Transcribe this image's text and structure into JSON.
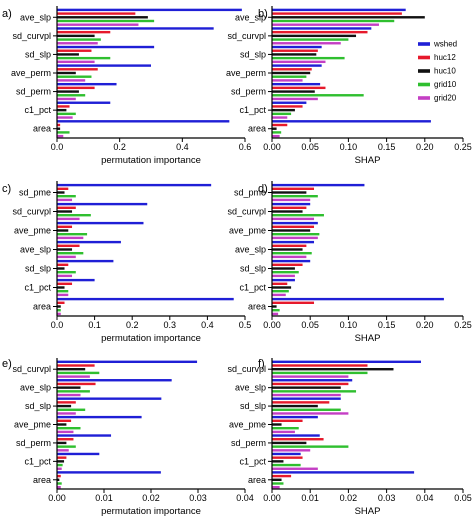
{
  "legend": {
    "series": [
      "wshed",
      "huc12",
      "huc10",
      "grid10",
      "grid20"
    ],
    "colors": [
      "#1f1fd6",
      "#e6192b",
      "#111111",
      "#2fbf2f",
      "#c43fc4"
    ],
    "placement": "inside right, panel b"
  },
  "chart_data": [
    {
      "panel": "a)",
      "type": "bar",
      "orientation": "horizontal",
      "xlabel": "permutation importance",
      "xlim": [
        0,
        0.6
      ],
      "ticks": [
        "0.0",
        "0.2",
        "0.4",
        "0.6"
      ],
      "tick_values": [
        0,
        0.2,
        0.4,
        0.6
      ],
      "categories": [
        "ave_slp",
        "sd_curvpl",
        "sd_slp",
        "ave_perm",
        "sd_perm",
        "c1_pct",
        "area"
      ],
      "series": [
        {
          "name": "wshed",
          "values": [
            0.59,
            0.5,
            0.31,
            0.3,
            0.19,
            0.17,
            0.55
          ]
        },
        {
          "name": "huc12",
          "values": [
            0.25,
            0.17,
            0.11,
            0.13,
            0.12,
            0.04,
            0.01
          ]
        },
        {
          "name": "huc10",
          "values": [
            0.29,
            0.12,
            0.07,
            0.06,
            0.07,
            0.03,
            0.01
          ]
        },
        {
          "name": "grid10",
          "values": [
            0.31,
            0.14,
            0.17,
            0.11,
            0.09,
            0.06,
            0.04
          ]
        },
        {
          "name": "grid20",
          "values": [
            0.26,
            0.13,
            0.12,
            0.09,
            0.06,
            0.05,
            0.02
          ]
        }
      ]
    },
    {
      "panel": "b)",
      "type": "bar",
      "orientation": "horizontal",
      "xlabel": "SHAP",
      "xlim": [
        0,
        0.25
      ],
      "ticks": [
        "0.00",
        "0.05",
        "0.10",
        "0.15",
        "0.20",
        "0.25"
      ],
      "tick_values": [
        0,
        0.05,
        0.1,
        0.15,
        0.2,
        0.25
      ],
      "categories": [
        "ave_slp",
        "sd_curvpl",
        "sd_slp",
        "ave_perm",
        "sd_perm",
        "c1_pct",
        "area"
      ],
      "series": [
        {
          "name": "wshed",
          "values": [
            0.175,
            0.13,
            0.065,
            0.065,
            0.063,
            0.045,
            0.208
          ]
        },
        {
          "name": "huc12",
          "values": [
            0.17,
            0.125,
            0.06,
            0.052,
            0.07,
            0.04,
            0.02
          ]
        },
        {
          "name": "huc10",
          "values": [
            0.2,
            0.11,
            0.058,
            0.05,
            0.056,
            0.03,
            0.006
          ]
        },
        {
          "name": "grid10",
          "values": [
            0.16,
            0.1,
            0.095,
            0.045,
            0.12,
            0.025,
            0.012
          ]
        },
        {
          "name": "grid20",
          "values": [
            0.14,
            0.09,
            0.07,
            0.04,
            0.06,
            0.02,
            0.01
          ]
        }
      ]
    },
    {
      "panel": "c)",
      "type": "bar",
      "orientation": "horizontal",
      "xlabel": "permutation importance",
      "xlim": [
        0,
        0.5
      ],
      "ticks": [
        "0.0",
        "0.1",
        "0.2",
        "0.3",
        "0.4",
        "0.5"
      ],
      "tick_values": [
        0,
        0.1,
        0.2,
        0.3,
        0.4,
        0.5
      ],
      "categories": [
        "sd_pme",
        "sd_curvpl",
        "ave_pme",
        "ave_slp",
        "sd_slp",
        "c1_pct",
        "area"
      ],
      "series": [
        {
          "name": "wshed",
          "values": [
            0.41,
            0.24,
            0.23,
            0.17,
            0.15,
            0.1,
            0.47
          ]
        },
        {
          "name": "huc12",
          "values": [
            0.03,
            0.05,
            0.04,
            0.06,
            0.03,
            0.04,
            0.02
          ]
        },
        {
          "name": "huc10",
          "values": [
            0.02,
            0.04,
            0.03,
            0.04,
            0.02,
            0.02,
            0.01
          ]
        },
        {
          "name": "grid10",
          "values": [
            0.05,
            0.09,
            0.08,
            0.07,
            0.05,
            0.03,
            0.01
          ]
        },
        {
          "name": "grid20",
          "values": [
            0.04,
            0.06,
            0.07,
            0.05,
            0.04,
            0.03,
            0.01
          ]
        }
      ]
    },
    {
      "panel": "d)",
      "type": "bar",
      "orientation": "horizontal",
      "xlabel": "SHAP",
      "xlim": [
        0,
        0.25
      ],
      "ticks": [
        "0.00",
        "0.05",
        "0.10",
        "0.15",
        "0.20",
        "0.25"
      ],
      "tick_values": [
        0,
        0.05,
        0.1,
        0.15,
        0.2,
        0.25
      ],
      "categories": [
        "sd_pme",
        "sd_curvpl",
        "ave_pme",
        "ave_slp",
        "sd_slp",
        "c1_pct",
        "area"
      ],
      "series": [
        {
          "name": "wshed",
          "values": [
            0.121,
            0.05,
            0.06,
            0.055,
            0.05,
            0.03,
            0.225
          ]
        },
        {
          "name": "huc12",
          "values": [
            0.055,
            0.045,
            0.055,
            0.045,
            0.04,
            0.02,
            0.055
          ]
        },
        {
          "name": "huc10",
          "values": [
            0.045,
            0.04,
            0.05,
            0.04,
            0.03,
            0.025,
            0.006
          ]
        },
        {
          "name": "grid10",
          "values": [
            0.06,
            0.068,
            0.062,
            0.052,
            0.035,
            0.022,
            0.01
          ]
        },
        {
          "name": "grid20",
          "values": [
            0.05,
            0.055,
            0.06,
            0.045,
            0.03,
            0.018,
            0.008
          ]
        }
      ]
    },
    {
      "panel": "e)",
      "type": "bar",
      "orientation": "horizontal",
      "xlabel": "permutation importance",
      "xlim": [
        0,
        0.04
      ],
      "ticks": [
        "0.00",
        "0.01",
        "0.02",
        "0.03",
        "0.04"
      ],
      "tick_values": [
        0,
        0.01,
        0.02,
        0.03,
        0.04
      ],
      "categories": [
        "sd_curvpl",
        "ave_slp",
        "sd_slp",
        "ave_pme",
        "sd_perm",
        "c1_pct",
        "area"
      ],
      "series": [
        {
          "name": "wshed",
          "values": [
            0.0298,
            0.0244,
            0.0222,
            0.018,
            0.0115,
            0.009,
            0.0221
          ]
        },
        {
          "name": "huc12",
          "values": [
            0.008,
            0.0082,
            0.004,
            0.003,
            0.0035,
            0.002,
            0.0008
          ]
        },
        {
          "name": "huc10",
          "values": [
            0.006,
            0.005,
            0.003,
            0.002,
            0.002,
            0.0015,
            0.0005
          ]
        },
        {
          "name": "grid10",
          "values": [
            0.009,
            0.007,
            0.006,
            0.005,
            0.004,
            0.0012,
            0.001
          ]
        },
        {
          "name": "grid20",
          "values": [
            0.007,
            0.005,
            0.004,
            0.0035,
            0.0025,
            0.001,
            0.0008
          ]
        }
      ]
    },
    {
      "panel": "f)",
      "type": "bar",
      "orientation": "horizontal",
      "xlabel": "SHAP",
      "xlim": [
        0,
        0.05
      ],
      "ticks": [
        "0.00",
        "0.01",
        "0.02",
        "0.03",
        "0.04",
        "0.05"
      ],
      "tick_values": [
        0,
        0.01,
        0.02,
        0.03,
        0.04,
        0.05
      ],
      "categories": [
        "sd_curvpl",
        "ave_slp",
        "sd_slp",
        "ave_pme",
        "sd_perm",
        "c1_pct",
        "area"
      ],
      "series": [
        {
          "name": "wshed",
          "values": [
            0.039,
            0.021,
            0.018,
            0.012,
            0.0125,
            0.0075,
            0.0372
          ]
        },
        {
          "name": "huc12",
          "values": [
            0.025,
            0.02,
            0.015,
            0.008,
            0.0135,
            0.008,
            0.005
          ]
        },
        {
          "name": "huc10",
          "values": [
            0.0318,
            0.018,
            0.012,
            0.0025,
            0.009,
            0.003,
            0.0025
          ]
        },
        {
          "name": "grid10",
          "values": [
            0.025,
            0.022,
            0.018,
            0.007,
            0.02,
            0.0075,
            0.003
          ]
        },
        {
          "name": "grid20",
          "values": [
            0.02,
            0.018,
            0.02,
            0.006,
            0.01,
            0.012,
            0.002
          ]
        }
      ]
    }
  ]
}
